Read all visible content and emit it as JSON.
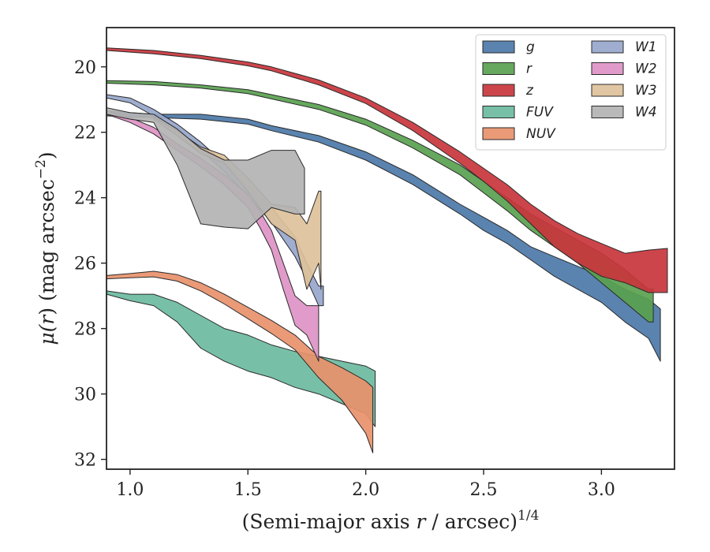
{
  "chart_data": {
    "type": "area",
    "xlabel": "(Semi-major axis r / arcsec)",
    "xlabel_parts": {
      "prefix": "(Semi-major axis ",
      "variable": "r",
      "suffix": " / arcsec)",
      "exponent": "1/4"
    },
    "ylabel": "μ(r) (mag arcsec⁻²)",
    "ylabel_parts": {
      "mu": "μ(",
      "variable": "r",
      "rest": ") (mag arcsec",
      "exponent": "−2",
      "close": ")"
    },
    "xlim": [
      0.9,
      3.31
    ],
    "ylim": [
      32.3,
      18.8
    ],
    "y_inverted": true,
    "xticks": [
      1.0,
      1.5,
      2.0,
      2.5,
      3.0
    ],
    "xtick_labels": [
      "1.0",
      "1.5",
      "2.0",
      "2.5",
      "3.0"
    ],
    "yticks": [
      20,
      22,
      24,
      26,
      28,
      30,
      32
    ],
    "ytick_labels": [
      "20",
      "22",
      "24",
      "26",
      "28",
      "30",
      "32"
    ],
    "legend": {
      "placement": "top-right",
      "columns": 2
    },
    "series": [
      {
        "name": "g",
        "color": "#4c78a8",
        "upper": [
          [
            0.9,
            21.35
          ],
          [
            1.1,
            21.45
          ],
          [
            1.3,
            21.45
          ],
          [
            1.5,
            21.6
          ],
          [
            1.6,
            21.8
          ],
          [
            1.8,
            22.1
          ],
          [
            2.0,
            22.6
          ],
          [
            2.2,
            23.3
          ],
          [
            2.4,
            24.2
          ],
          [
            2.5,
            24.6
          ],
          [
            2.6,
            25.0
          ],
          [
            2.7,
            25.5
          ],
          [
            2.8,
            25.8
          ],
          [
            2.9,
            26.1
          ],
          [
            3.0,
            26.4
          ],
          [
            3.1,
            26.8
          ],
          [
            3.2,
            27.1
          ],
          [
            3.25,
            27.4
          ]
        ],
        "lower": [
          [
            0.9,
            21.5
          ],
          [
            1.1,
            21.55
          ],
          [
            1.3,
            21.6
          ],
          [
            1.5,
            21.75
          ],
          [
            1.6,
            21.95
          ],
          [
            1.8,
            22.3
          ],
          [
            2.0,
            22.85
          ],
          [
            2.2,
            23.6
          ],
          [
            2.4,
            24.5
          ],
          [
            2.5,
            25.0
          ],
          [
            2.6,
            25.4
          ],
          [
            2.7,
            25.9
          ],
          [
            2.8,
            26.4
          ],
          [
            2.9,
            26.8
          ],
          [
            3.0,
            27.2
          ],
          [
            3.1,
            27.8
          ],
          [
            3.2,
            28.3
          ],
          [
            3.25,
            29.0
          ]
        ]
      },
      {
        "name": "r",
        "color": "#59a14f",
        "upper": [
          [
            0.9,
            20.42
          ],
          [
            1.1,
            20.45
          ],
          [
            1.3,
            20.55
          ],
          [
            1.5,
            20.7
          ],
          [
            1.6,
            20.85
          ],
          [
            1.8,
            21.15
          ],
          [
            2.0,
            21.6
          ],
          [
            2.2,
            22.25
          ],
          [
            2.4,
            23.0
          ],
          [
            2.5,
            23.5
          ],
          [
            2.6,
            24.0
          ],
          [
            2.7,
            24.5
          ],
          [
            2.8,
            24.9
          ],
          [
            2.9,
            25.3
          ],
          [
            3.0,
            25.7
          ],
          [
            3.1,
            26.2
          ],
          [
            3.2,
            26.8
          ],
          [
            3.22,
            26.8
          ]
        ],
        "lower": [
          [
            0.9,
            20.5
          ],
          [
            1.1,
            20.55
          ],
          [
            1.3,
            20.65
          ],
          [
            1.5,
            20.82
          ],
          [
            1.6,
            20.98
          ],
          [
            1.8,
            21.3
          ],
          [
            2.0,
            21.78
          ],
          [
            2.2,
            22.48
          ],
          [
            2.4,
            23.3
          ],
          [
            2.5,
            23.85
          ],
          [
            2.6,
            24.4
          ],
          [
            2.7,
            25.0
          ],
          [
            2.8,
            25.5
          ],
          [
            2.9,
            26.0
          ],
          [
            3.0,
            26.6
          ],
          [
            3.1,
            27.2
          ],
          [
            3.2,
            27.8
          ],
          [
            3.22,
            27.8
          ]
        ]
      },
      {
        "name": "z",
        "color": "#c8353c",
        "upper": [
          [
            0.9,
            19.42
          ],
          [
            1.1,
            19.5
          ],
          [
            1.3,
            19.65
          ],
          [
            1.5,
            19.85
          ],
          [
            1.6,
            20.0
          ],
          [
            1.8,
            20.4
          ],
          [
            2.0,
            20.95
          ],
          [
            2.2,
            21.7
          ],
          [
            2.4,
            22.6
          ],
          [
            2.5,
            23.1
          ],
          [
            2.6,
            23.6
          ],
          [
            2.7,
            24.2
          ],
          [
            2.8,
            24.7
          ],
          [
            2.9,
            25.1
          ],
          [
            3.0,
            25.4
          ],
          [
            3.1,
            25.7
          ],
          [
            3.2,
            25.6
          ],
          [
            3.28,
            25.55
          ]
        ],
        "lower": [
          [
            0.9,
            19.5
          ],
          [
            1.1,
            19.6
          ],
          [
            1.3,
            19.75
          ],
          [
            1.5,
            19.97
          ],
          [
            1.6,
            20.12
          ],
          [
            1.8,
            20.55
          ],
          [
            2.0,
            21.12
          ],
          [
            2.2,
            21.95
          ],
          [
            2.4,
            22.95
          ],
          [
            2.5,
            23.5
          ],
          [
            2.6,
            24.1
          ],
          [
            2.7,
            24.8
          ],
          [
            2.8,
            25.5
          ],
          [
            2.9,
            26.0
          ],
          [
            3.0,
            26.4
          ],
          [
            3.1,
            26.6
          ],
          [
            3.2,
            26.9
          ],
          [
            3.28,
            26.9
          ]
        ]
      },
      {
        "name": "FUV",
        "color": "#6bbba0",
        "upper": [
          [
            0.9,
            26.85
          ],
          [
            1.0,
            26.95
          ],
          [
            1.1,
            26.95
          ],
          [
            1.2,
            27.2
          ],
          [
            1.3,
            27.6
          ],
          [
            1.4,
            28.0
          ],
          [
            1.5,
            28.2
          ],
          [
            1.6,
            28.5
          ],
          [
            1.7,
            28.7
          ],
          [
            1.8,
            28.85
          ],
          [
            1.9,
            29.0
          ],
          [
            2.0,
            29.15
          ],
          [
            2.04,
            29.3
          ]
        ],
        "lower": [
          [
            0.9,
            26.95
          ],
          [
            1.0,
            27.15
          ],
          [
            1.1,
            27.3
          ],
          [
            1.2,
            27.8
          ],
          [
            1.3,
            28.6
          ],
          [
            1.4,
            29.0
          ],
          [
            1.5,
            29.3
          ],
          [
            1.6,
            29.5
          ],
          [
            1.7,
            29.8
          ],
          [
            1.8,
            30.0
          ],
          [
            1.9,
            30.3
          ],
          [
            2.0,
            30.6
          ],
          [
            2.04,
            31.0
          ]
        ]
      },
      {
        "name": "NUV",
        "color": "#e8916b",
        "upper": [
          [
            0.9,
            26.38
          ],
          [
            1.0,
            26.32
          ],
          [
            1.1,
            26.25
          ],
          [
            1.2,
            26.35
          ],
          [
            1.3,
            26.6
          ],
          [
            1.4,
            26.95
          ],
          [
            1.5,
            27.35
          ],
          [
            1.6,
            27.75
          ],
          [
            1.7,
            28.2
          ],
          [
            1.8,
            28.85
          ],
          [
            1.9,
            29.2
          ],
          [
            2.0,
            29.6
          ],
          [
            2.03,
            29.8
          ]
        ],
        "lower": [
          [
            0.9,
            26.48
          ],
          [
            1.0,
            26.45
          ],
          [
            1.1,
            26.42
          ],
          [
            1.2,
            26.55
          ],
          [
            1.3,
            26.85
          ],
          [
            1.4,
            27.25
          ],
          [
            1.5,
            27.7
          ],
          [
            1.6,
            28.15
          ],
          [
            1.7,
            28.65
          ],
          [
            1.8,
            29.5
          ],
          [
            1.9,
            30.2
          ],
          [
            2.0,
            31.2
          ],
          [
            2.03,
            31.8
          ]
        ]
      },
      {
        "name": "W1",
        "color": "#97a6cc",
        "upper": [
          [
            0.9,
            20.85
          ],
          [
            1.0,
            20.95
          ],
          [
            1.1,
            21.3
          ],
          [
            1.2,
            21.75
          ],
          [
            1.3,
            22.3
          ],
          [
            1.4,
            22.95
          ],
          [
            1.5,
            23.6
          ],
          [
            1.6,
            24.3
          ],
          [
            1.7,
            25.2
          ],
          [
            1.75,
            26.0
          ],
          [
            1.8,
            26.7
          ],
          [
            1.82,
            26.7
          ]
        ],
        "lower": [
          [
            0.9,
            20.95
          ],
          [
            1.0,
            21.1
          ],
          [
            1.1,
            21.5
          ],
          [
            1.2,
            22.0
          ],
          [
            1.3,
            22.55
          ],
          [
            1.4,
            23.2
          ],
          [
            1.5,
            23.95
          ],
          [
            1.6,
            24.75
          ],
          [
            1.7,
            25.8
          ],
          [
            1.75,
            26.5
          ],
          [
            1.8,
            27.3
          ],
          [
            1.82,
            27.3
          ]
        ]
      },
      {
        "name": "W2",
        "color": "#de93c6",
        "upper": [
          [
            0.9,
            21.35
          ],
          [
            1.0,
            21.55
          ],
          [
            1.1,
            21.85
          ],
          [
            1.2,
            22.35
          ],
          [
            1.3,
            22.8
          ],
          [
            1.4,
            23.3
          ],
          [
            1.5,
            23.9
          ],
          [
            1.55,
            24.4
          ],
          [
            1.6,
            25.0
          ],
          [
            1.65,
            26.0
          ],
          [
            1.7,
            27.0
          ],
          [
            1.75,
            27.3
          ],
          [
            1.8,
            27.3
          ]
        ],
        "lower": [
          [
            0.9,
            21.45
          ],
          [
            1.0,
            21.7
          ],
          [
            1.1,
            22.05
          ],
          [
            1.2,
            22.55
          ],
          [
            1.3,
            23.05
          ],
          [
            1.4,
            23.6
          ],
          [
            1.5,
            24.3
          ],
          [
            1.55,
            24.9
          ],
          [
            1.6,
            25.6
          ],
          [
            1.65,
            26.8
          ],
          [
            1.7,
            27.9
          ],
          [
            1.75,
            28.2
          ],
          [
            1.8,
            29.0
          ]
        ]
      },
      {
        "name": "W3",
        "color": "#ddc19a",
        "upper": [
          [
            1.1,
            21.55
          ],
          [
            1.2,
            21.95
          ],
          [
            1.3,
            22.45
          ],
          [
            1.4,
            22.7
          ],
          [
            1.5,
            23.4
          ],
          [
            1.6,
            24.2
          ],
          [
            1.7,
            24.3
          ],
          [
            1.75,
            24.8
          ],
          [
            1.8,
            23.8
          ],
          [
            1.81,
            23.8
          ]
        ],
        "lower": [
          [
            1.1,
            21.6
          ],
          [
            1.2,
            22.1
          ],
          [
            1.3,
            22.65
          ],
          [
            1.4,
            22.95
          ],
          [
            1.5,
            23.8
          ],
          [
            1.6,
            24.8
          ],
          [
            1.7,
            25.3
          ],
          [
            1.75,
            26.8
          ],
          [
            1.8,
            26.0
          ],
          [
            1.81,
            26.8
          ]
        ]
      },
      {
        "name": "W4",
        "color": "#b3b3b3",
        "upper": [
          [
            0.9,
            21.25
          ],
          [
            1.0,
            21.4
          ],
          [
            1.1,
            21.45
          ],
          [
            1.2,
            21.9
          ],
          [
            1.3,
            22.5
          ],
          [
            1.4,
            22.85
          ],
          [
            1.5,
            22.85
          ],
          [
            1.6,
            22.55
          ],
          [
            1.7,
            22.55
          ],
          [
            1.74,
            23.1
          ]
        ],
        "lower": [
          [
            0.9,
            21.45
          ],
          [
            1.0,
            21.6
          ],
          [
            1.1,
            21.7
          ],
          [
            1.2,
            23.0
          ],
          [
            1.3,
            24.8
          ],
          [
            1.4,
            24.9
          ],
          [
            1.5,
            24.95
          ],
          [
            1.6,
            24.3
          ],
          [
            1.7,
            24.5
          ],
          [
            1.74,
            24.5
          ]
        ]
      }
    ]
  }
}
